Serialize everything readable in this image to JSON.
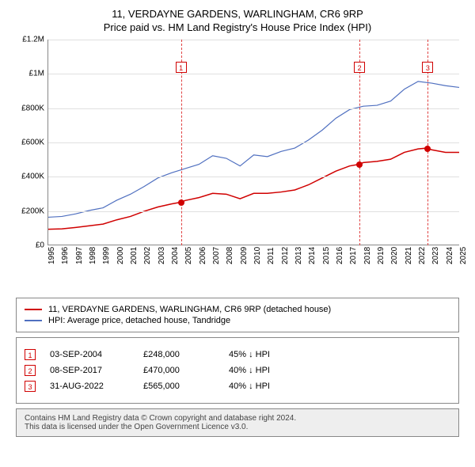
{
  "title": "11, VERDAYNE GARDENS, WARLINGHAM, CR6 9RP",
  "subtitle": "Price paid vs. HM Land Registry's House Price Index (HPI)",
  "chart": {
    "type": "line",
    "background_color": "#ffffff",
    "grid_color": "#e0e0e0",
    "axis_color": "#888888",
    "ylim": [
      0,
      1200000
    ],
    "ytick_step": 200000,
    "y_ticks": [
      "£0",
      "£200K",
      "£400K",
      "£600K",
      "£800K",
      "£1M",
      "£1.2M"
    ],
    "xlim": [
      1995,
      2025
    ],
    "x_ticks": [
      1995,
      1996,
      1997,
      1998,
      1999,
      2000,
      2001,
      2002,
      2003,
      2004,
      2005,
      2006,
      2007,
      2008,
      2009,
      2010,
      2011,
      2012,
      2013,
      2014,
      2015,
      2016,
      2017,
      2018,
      2019,
      2020,
      2021,
      2022,
      2023,
      2024,
      2025
    ],
    "markers": [
      {
        "n": "1",
        "year": 2004.67,
        "value": 248000
      },
      {
        "n": "2",
        "year": 2017.68,
        "value": 470000
      },
      {
        "n": "3",
        "year": 2022.66,
        "value": 565000
      }
    ],
    "marker_line_color": "#e04040",
    "marker_box_border": "#d00000",
    "series_price": {
      "label": "11, VERDAYNE GARDENS, WARLINGHAM, CR6 9RP (detached house)",
      "color": "#d00000",
      "line_width": 1.5,
      "points": [
        [
          1995,
          90000
        ],
        [
          1996,
          92000
        ],
        [
          1997,
          100000
        ],
        [
          1998,
          110000
        ],
        [
          1999,
          120000
        ],
        [
          2000,
          145000
        ],
        [
          2001,
          165000
        ],
        [
          2002,
          195000
        ],
        [
          2003,
          220000
        ],
        [
          2004,
          238000
        ],
        [
          2004.67,
          248000
        ],
        [
          2005,
          258000
        ],
        [
          2006,
          275000
        ],
        [
          2007,
          300000
        ],
        [
          2008,
          295000
        ],
        [
          2009,
          268000
        ],
        [
          2010,
          300000
        ],
        [
          2011,
          300000
        ],
        [
          2012,
          308000
        ],
        [
          2013,
          320000
        ],
        [
          2014,
          350000
        ],
        [
          2015,
          390000
        ],
        [
          2016,
          430000
        ],
        [
          2017,
          460000
        ],
        [
          2017.68,
          470000
        ],
        [
          2018,
          480000
        ],
        [
          2019,
          487000
        ],
        [
          2020,
          500000
        ],
        [
          2021,
          540000
        ],
        [
          2022,
          560000
        ],
        [
          2022.66,
          565000
        ],
        [
          2023,
          555000
        ],
        [
          2024,
          540000
        ],
        [
          2025,
          540000
        ]
      ]
    },
    "series_hpi": {
      "label": "HPI: Average price, detached house, Tandridge",
      "color": "#5070c0",
      "line_width": 1.2,
      "points": [
        [
          1995,
          160000
        ],
        [
          1996,
          165000
        ],
        [
          1997,
          180000
        ],
        [
          1998,
          200000
        ],
        [
          1999,
          215000
        ],
        [
          2000,
          260000
        ],
        [
          2001,
          295000
        ],
        [
          2002,
          340000
        ],
        [
          2003,
          390000
        ],
        [
          2004,
          420000
        ],
        [
          2005,
          445000
        ],
        [
          2006,
          470000
        ],
        [
          2007,
          520000
        ],
        [
          2008,
          505000
        ],
        [
          2009,
          460000
        ],
        [
          2010,
          525000
        ],
        [
          2011,
          515000
        ],
        [
          2012,
          545000
        ],
        [
          2013,
          565000
        ],
        [
          2014,
          612000
        ],
        [
          2015,
          670000
        ],
        [
          2016,
          740000
        ],
        [
          2017,
          790000
        ],
        [
          2018,
          810000
        ],
        [
          2019,
          815000
        ],
        [
          2020,
          840000
        ],
        [
          2021,
          910000
        ],
        [
          2022,
          955000
        ],
        [
          2023,
          945000
        ],
        [
          2024,
          930000
        ],
        [
          2025,
          920000
        ]
      ]
    }
  },
  "legend": {
    "items": [
      {
        "color": "#d00000",
        "label": "11, VERDAYNE GARDENS, WARLINGHAM, CR6 9RP (detached house)"
      },
      {
        "color": "#5070c0",
        "label": "HPI: Average price, detached house, Tandridge"
      }
    ]
  },
  "sales": [
    {
      "n": "1",
      "date": "03-SEP-2004",
      "price": "£248,000",
      "delta": "45% ↓ HPI"
    },
    {
      "n": "2",
      "date": "08-SEP-2017",
      "price": "£470,000",
      "delta": "40% ↓ HPI"
    },
    {
      "n": "3",
      "date": "31-AUG-2022",
      "price": "£565,000",
      "delta": "40% ↓ HPI"
    }
  ],
  "footer": {
    "line1": "Contains HM Land Registry data © Crown copyright and database right 2024.",
    "line2": "This data is licensed under the Open Government Licence v3.0."
  }
}
